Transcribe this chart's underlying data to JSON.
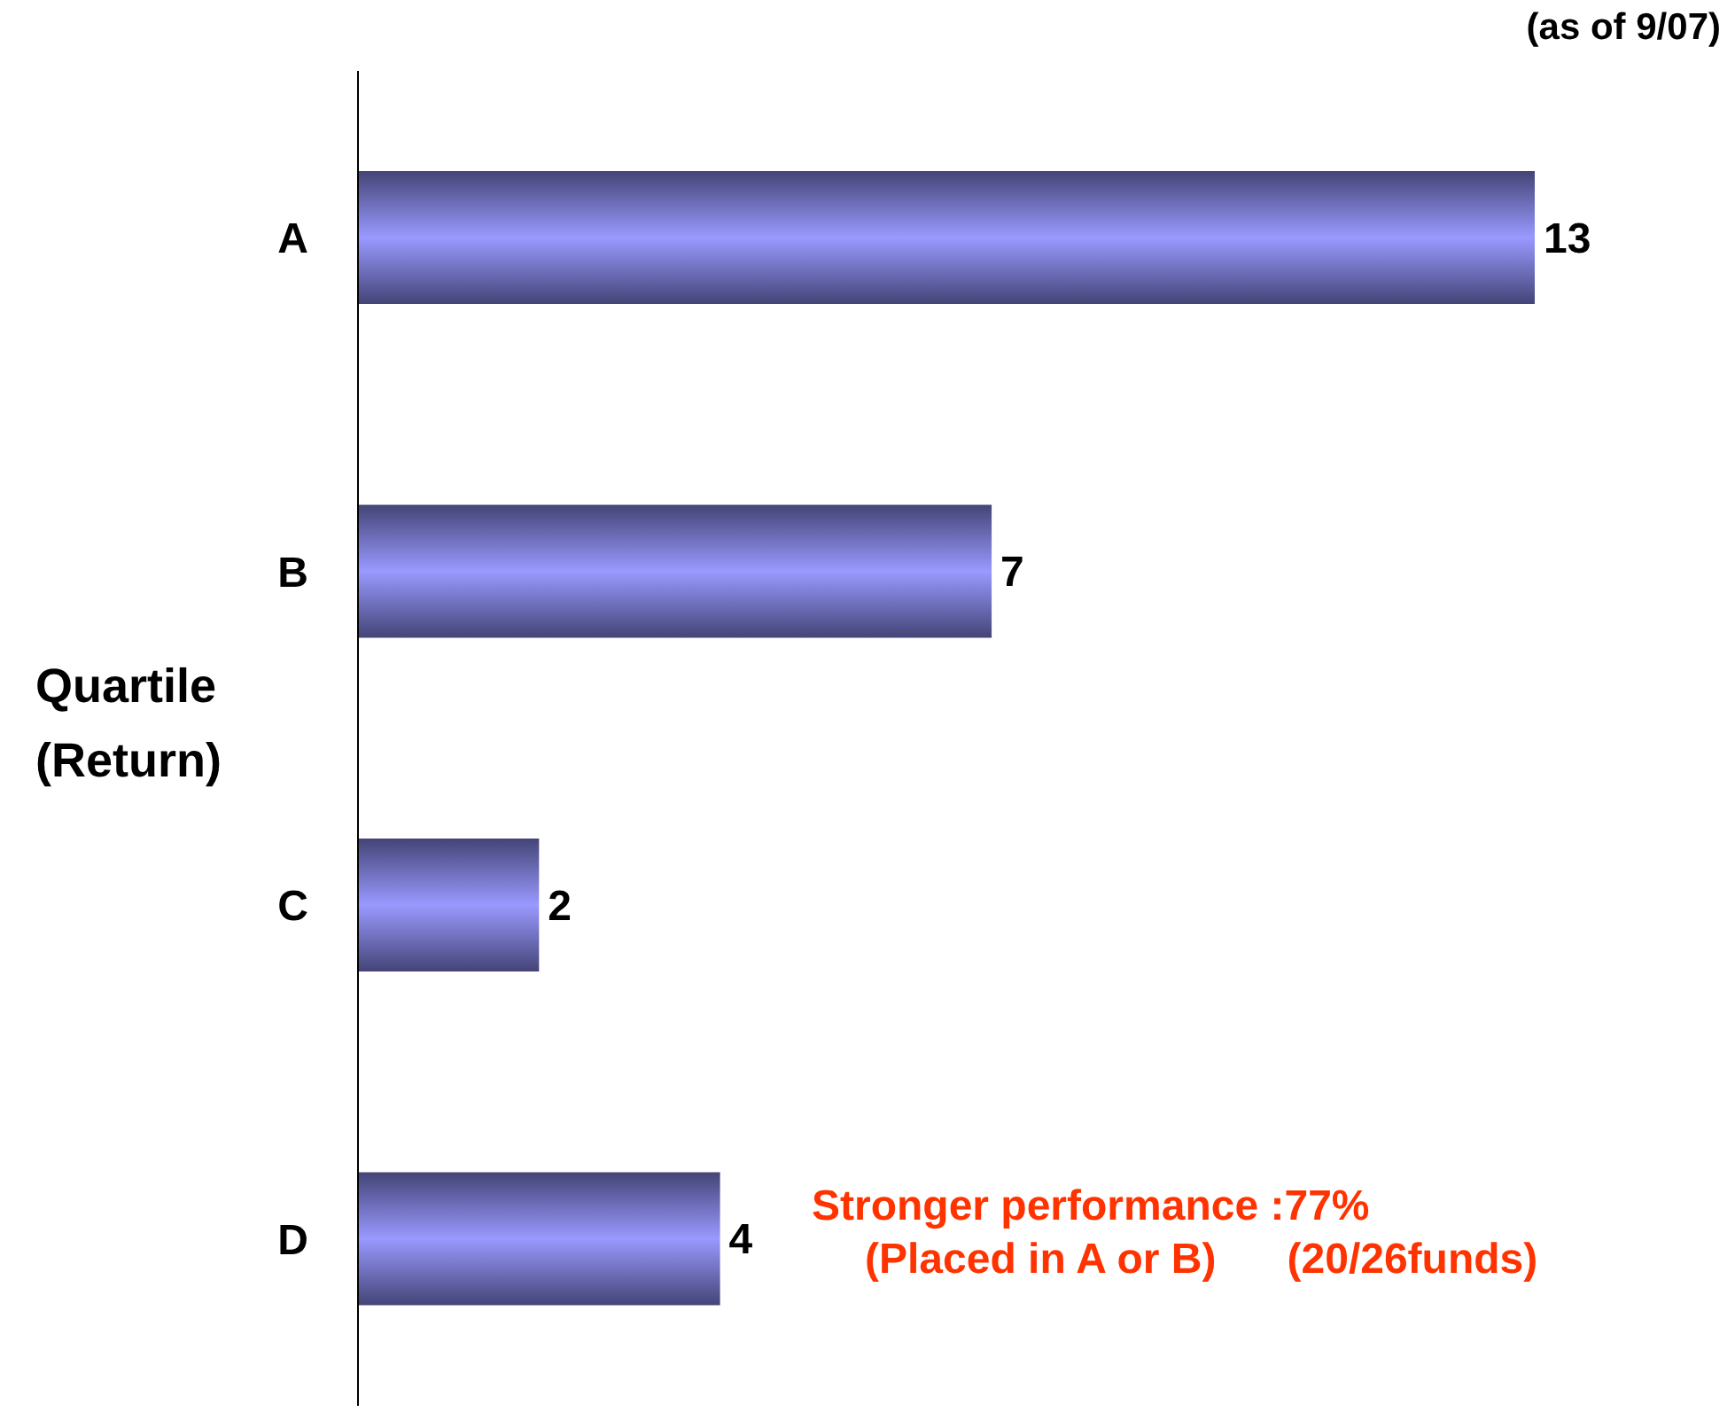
{
  "chart_data": {
    "type": "bar",
    "orientation": "horizontal",
    "ylabel": "Quartile\n(Return)",
    "categories": [
      "A",
      "B",
      "C",
      "D"
    ],
    "values": [
      13,
      7,
      2,
      4
    ],
    "color": "#9999ff",
    "data_labels": true,
    "annotations": [
      "(as of 9/07)",
      "Stronger performance :77%\n(Placed in A or B)      (20/26funds)"
    ]
  }
}
